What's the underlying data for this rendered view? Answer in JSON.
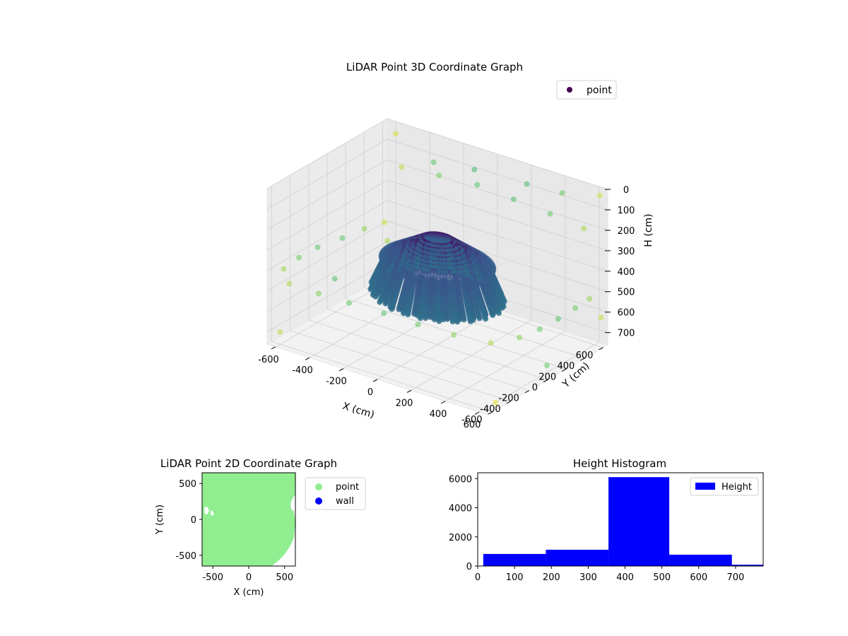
{
  "chart_data": [
    {
      "type": "scatter3d",
      "title": "LiDAR Point 3D Coordinate Graph",
      "xlabel": "X (cm)",
      "ylabel": "Y (cm)",
      "zlabel": "H (cm)",
      "x_ticks": [
        -600,
        -400,
        -200,
        0,
        200,
        400,
        600
      ],
      "y_ticks": [
        -600,
        -400,
        -200,
        0,
        200,
        400,
        600
      ],
      "z_ticks": [
        0,
        100,
        200,
        300,
        400,
        500,
        600,
        700
      ],
      "xlim": [
        -650,
        650
      ],
      "ylim": [
        -650,
        650
      ],
      "zlim": [
        0,
        760
      ],
      "z_axis_inverted": true,
      "legend": [
        "point"
      ],
      "legend_position": "upper-right",
      "colormap": "viridis",
      "series": [
        {
          "name": "point",
          "points": [
            [
              -520,
              -650,
              430
            ],
            [
              -330,
              -680,
              420
            ],
            [
              -140,
              -700,
              410
            ],
            [
              60,
              -690,
              410
            ],
            [
              250,
              -670,
              420
            ],
            [
              440,
              -630,
              430
            ],
            [
              620,
              -560,
              440
            ],
            [
              680,
              -360,
              450
            ],
            [
              690,
              -160,
              460
            ],
            [
              680,
              60,
              470
            ],
            [
              660,
              280,
              480
            ],
            [
              640,
              470,
              490
            ],
            [
              -650,
              -470,
              440
            ],
            [
              -680,
              -250,
              450
            ],
            [
              -690,
              -30,
              460
            ],
            [
              -670,
              200,
              470
            ],
            [
              -660,
              420,
              480
            ],
            [
              -640,
              600,
              490
            ],
            [
              -560,
              640,
              210
            ],
            [
              -350,
              660,
              200
            ],
            [
              -130,
              670,
              190
            ],
            [
              90,
              660,
              200
            ],
            [
              310,
              650,
              210
            ],
            [
              520,
              630,
              220
            ],
            [
              -600,
              -600,
              700
            ],
            [
              -660,
              100,
              640
            ],
            [
              -600,
              560,
              560
            ],
            [
              680,
              -620,
              700
            ],
            [
              660,
              560,
              600
            ],
            [
              700,
              -100,
              650
            ],
            [
              -120,
              620,
              100
            ],
            [
              200,
              600,
              80
            ],
            [
              420,
              580,
              60
            ],
            [
              -350,
              600,
              120
            ],
            [
              620,
              620,
              30
            ],
            [
              -600,
              650,
              60
            ]
          ],
          "rings": {
            "count": 90,
            "radius_top": 250,
            "radius_bottom": 330,
            "h_top": 360,
            "h_bottom": 520
          }
        }
      ]
    },
    {
      "type": "scatter",
      "title": "LiDAR Point 2D Coordinate Graph",
      "xlabel": "X (cm)",
      "ylabel": "Y (cm)",
      "x_ticks": [
        -500,
        0,
        500
      ],
      "y_ticks": [
        -500,
        0,
        500
      ],
      "xlim": [
        -650,
        650
      ],
      "ylim": [
        -650,
        650
      ],
      "legend": [
        "point",
        "wall"
      ],
      "legend_position": "outside-right",
      "colors": {
        "point": "#90ee90",
        "wall": "#0000ff"
      }
    },
    {
      "type": "bar",
      "title": "Height Histogram",
      "xlabel": "",
      "ylabel": "",
      "x_ticks": [
        0,
        100,
        200,
        300,
        400,
        500,
        600,
        700
      ],
      "y_ticks": [
        0,
        2000,
        4000,
        6000
      ],
      "xlim": [
        0,
        775
      ],
      "ylim": [
        0,
        6400
      ],
      "legend": [
        "Height"
      ],
      "legend_position": "top-right",
      "color": "#0000ff",
      "bins": [
        {
          "start": 15,
          "end": 185,
          "count": 830
        },
        {
          "start": 185,
          "end": 355,
          "count": 1120
        },
        {
          "start": 355,
          "end": 520,
          "count": 6100
        },
        {
          "start": 520,
          "end": 690,
          "count": 780
        },
        {
          "start": 690,
          "end": 775,
          "count": 90
        }
      ]
    }
  ]
}
